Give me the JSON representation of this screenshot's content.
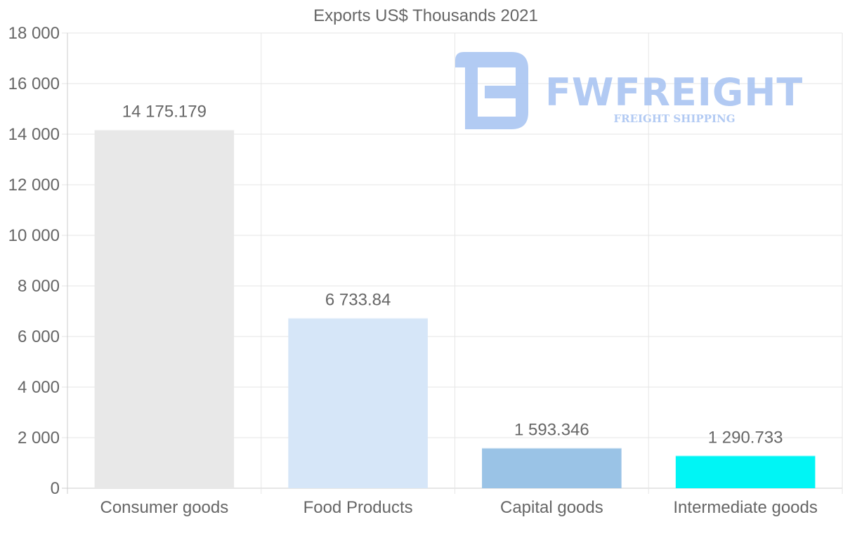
{
  "chart_data": {
    "type": "bar",
    "title": "Exports US$ Thousands 2021",
    "categories": [
      "Consumer goods",
      "Food Products",
      "Capital goods",
      "Intermediate goods"
    ],
    "values": [
      14175.179,
      6733.84,
      1593.346,
      1290.733
    ],
    "value_labels": [
      "14 175.179",
      "6 733.84",
      "1 593.346",
      "1 290.733"
    ],
    "bar_colors": [
      "#e8e8e8",
      "#d6e6f8",
      "#9ac3e6",
      "#00f5f5"
    ],
    "ylim": [
      0,
      18000
    ],
    "yticks": [
      0,
      2000,
      4000,
      6000,
      8000,
      10000,
      12000,
      14000,
      16000,
      18000
    ],
    "ytick_labels": [
      "0",
      "2 000",
      "4 000",
      "6 000",
      "8 000",
      "10 000",
      "12 000",
      "14 000",
      "16 000",
      "18 000"
    ],
    "xlabel": "",
    "ylabel": "",
    "grid": true
  },
  "watermark": {
    "brand": "FWFREIGHT",
    "tagline": "FREIGHT SHIPPING",
    "color": "#aac5f2"
  }
}
